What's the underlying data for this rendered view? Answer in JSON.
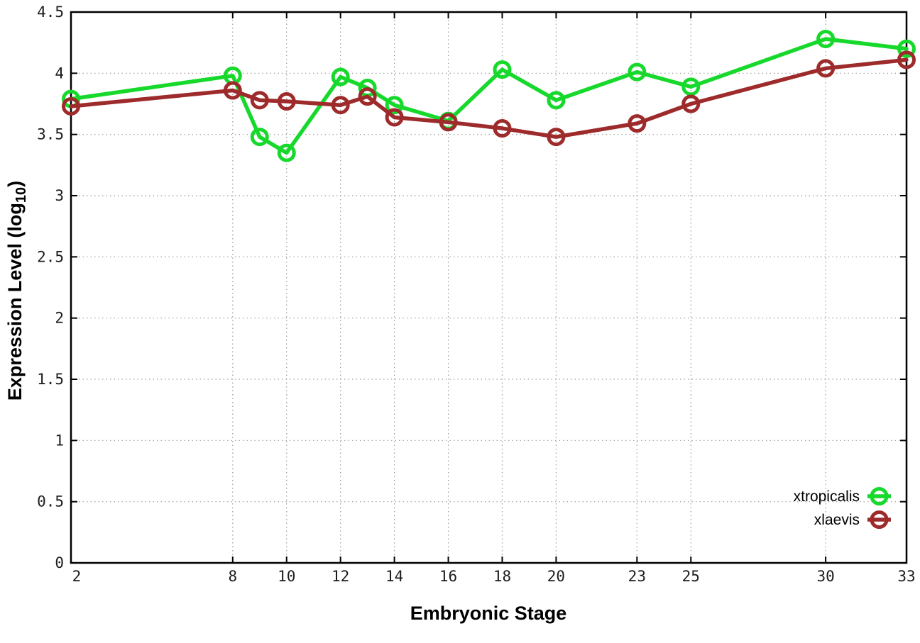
{
  "figure": {
    "background": "#ffffff",
    "border_color": "#000000",
    "grid_color": "#9a9a9a",
    "tick_label_color": "#1c1c1c"
  },
  "chart_data": {
    "type": "line",
    "title": "",
    "xlabel": "Embryonic Stage",
    "ylabel": "Expression Level (log10)",
    "ylabel_parts": {
      "main": "Expression Level (log",
      "sub": "10",
      "end": ")"
    },
    "xlim": [
      2,
      33
    ],
    "ylim": [
      0,
      4.5
    ],
    "grid": true,
    "legend_position": "bottom-right-inside",
    "x": [
      2,
      8,
      9,
      10,
      12,
      13,
      14,
      16,
      18,
      20,
      23,
      25,
      30,
      33
    ],
    "x_ticks": [
      2,
      8,
      10,
      12,
      14,
      16,
      18,
      20,
      23,
      25,
      30,
      33
    ],
    "x_tick_labels": [
      "2",
      "8",
      "10",
      "12",
      "14",
      "16",
      "18",
      "20",
      "23",
      "25",
      "30",
      "33"
    ],
    "y_ticks": [
      0,
      0.5,
      1,
      1.5,
      2,
      2.5,
      3,
      3.5,
      4,
      4.5
    ],
    "y_tick_labels": [
      "0",
      "0.5",
      "1",
      "1.5",
      "2",
      "2.5",
      "3",
      "3.5",
      "4",
      "4.5"
    ],
    "series": [
      {
        "name": "xtropicalis",
        "color": "#16d92c",
        "values": [
          3.79,
          3.98,
          3.48,
          3.35,
          3.97,
          3.88,
          3.74,
          3.61,
          4.03,
          3.78,
          4.01,
          3.89,
          4.28,
          4.2
        ]
      },
      {
        "name": "xlaevis",
        "color": "#9e2b2b",
        "values": [
          3.73,
          3.86,
          3.78,
          3.77,
          3.74,
          3.81,
          3.64,
          3.6,
          3.55,
          3.48,
          3.59,
          3.75,
          4.04,
          4.11
        ]
      }
    ]
  }
}
